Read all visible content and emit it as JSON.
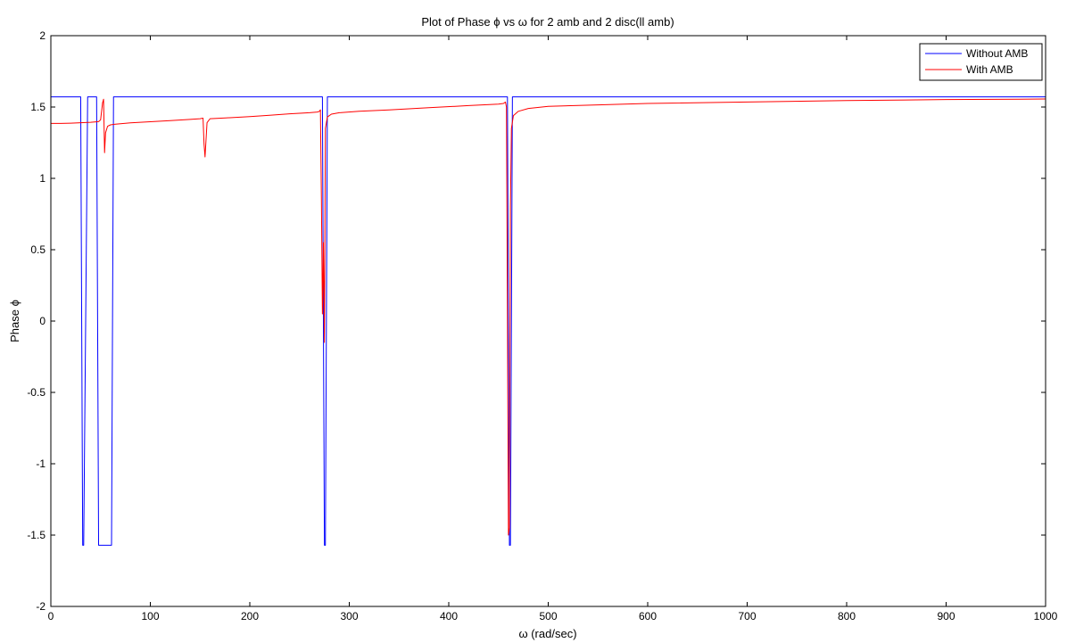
{
  "chart_data": {
    "type": "line",
    "title": "Plot of Phase ϕ vs ω for 2 amb and 2 disc(ll amb)",
    "xlabel": "ω (rad/sec)",
    "ylabel": "Phase ϕ",
    "xlim": [
      0,
      1000
    ],
    "ylim": [
      -2,
      2
    ],
    "xticks": [
      0,
      100,
      200,
      300,
      400,
      500,
      600,
      700,
      800,
      900,
      1000
    ],
    "yticks": [
      -2,
      -1.5,
      -1,
      -0.5,
      0,
      0.5,
      1,
      1.5,
      2
    ],
    "xtick_labels": [
      "0",
      "100",
      "200",
      "300",
      "400",
      "500",
      "600",
      "700",
      "800",
      "900",
      "1000"
    ],
    "ytick_labels": [
      "-2",
      "-1.5",
      "-1",
      "-0.5",
      "0",
      "0.5",
      "1",
      "1.5",
      "2"
    ],
    "grid": false,
    "legend_position": "top-right",
    "series": [
      {
        "name": "Without AMB",
        "color": "#0000ff",
        "x": [
          0,
          30,
          31,
          32,
          33,
          34,
          36,
          37,
          46,
          47,
          48,
          49,
          61,
          62,
          63,
          64,
          273,
          274,
          275,
          276,
          277,
          278,
          459,
          460,
          461,
          462,
          463,
          464,
          1000
        ],
        "y": [
          1.571,
          1.571,
          0,
          -1.571,
          -1.571,
          -0.78,
          0.78,
          1.571,
          1.571,
          0,
          -1.571,
          -1.571,
          -1.571,
          0,
          1.571,
          1.571,
          1.571,
          0,
          -1.571,
          -1.571,
          0,
          1.571,
          1.571,
          0,
          -1.571,
          -1.571,
          0,
          1.571,
          1.571
        ]
      },
      {
        "name": "With AMB",
        "color": "#ff0000",
        "x": [
          0,
          10,
          20,
          30,
          40,
          48,
          50,
          52,
          53,
          54,
          55,
          57,
          60,
          65,
          80,
          100,
          120,
          140,
          150,
          153,
          154,
          155,
          157,
          160,
          180,
          200,
          220,
          240,
          260,
          268,
          270,
          271,
          272,
          273,
          274,
          275,
          276,
          278,
          282,
          290,
          310,
          340,
          380,
          420,
          450,
          455,
          457,
          458,
          459,
          460,
          461,
          462,
          463,
          465,
          470,
          480,
          500,
          550,
          600,
          700,
          800,
          900,
          1000
        ],
        "y": [
          1.385,
          1.385,
          1.387,
          1.39,
          1.393,
          1.398,
          1.41,
          1.53,
          1.555,
          1.18,
          1.32,
          1.365,
          1.375,
          1.38,
          1.389,
          1.397,
          1.405,
          1.413,
          1.418,
          1.422,
          1.24,
          1.15,
          1.39,
          1.418,
          1.425,
          1.433,
          1.442,
          1.452,
          1.46,
          1.465,
          1.47,
          1.48,
          0.85,
          0.05,
          0.55,
          -0.15,
          1.35,
          1.43,
          1.45,
          1.46,
          1.47,
          1.48,
          1.495,
          1.51,
          1.52,
          1.525,
          1.535,
          1.5,
          0.05,
          -1.5,
          -1.45,
          0.8,
          1.35,
          1.44,
          1.47,
          1.49,
          1.505,
          1.515,
          1.525,
          1.535,
          1.545,
          1.552,
          1.556
        ]
      }
    ]
  }
}
